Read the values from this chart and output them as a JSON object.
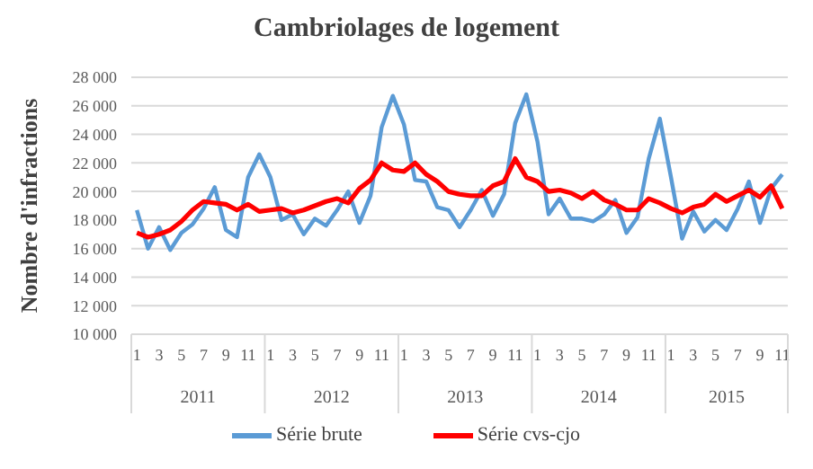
{
  "chart_data": {
    "type": "line",
    "title": "Cambriolages de logement",
    "ylabel": "Nombre d'infractions",
    "categories": [
      "1",
      null,
      "3",
      null,
      "5",
      null,
      "7",
      null,
      "9",
      null,
      "11",
      null,
      "1",
      null,
      "3",
      null,
      "5",
      null,
      "7",
      null,
      "9",
      null,
      "11",
      null,
      "1",
      null,
      "3",
      null,
      "5",
      null,
      "7",
      null,
      "9",
      null,
      "11",
      null,
      "1",
      null,
      "3",
      null,
      "5",
      null,
      "7",
      null,
      "9",
      null,
      "11",
      null,
      "1",
      null,
      "3",
      null,
      "5",
      null,
      "7",
      null,
      "9",
      null,
      "11"
    ],
    "series": [
      {
        "name": "Série brute",
        "color": "#5b9bd5",
        "values": [
          18700,
          16000,
          17500,
          15900,
          17100,
          17700,
          18800,
          20300,
          17300,
          16800,
          21000,
          22600,
          21000,
          18000,
          18400,
          17000,
          18100,
          17600,
          18700,
          20000,
          17800,
          19700,
          24500,
          26700,
          24700,
          20800,
          20700,
          18900,
          18700,
          17500,
          18700,
          20100,
          18300,
          19800,
          24800,
          26800,
          23500,
          18400,
          19500,
          18100,
          18100,
          17900,
          18400,
          19400,
          17100,
          18200,
          22300,
          25100,
          21000,
          16700,
          18600,
          17200,
          18000,
          17300,
          18800,
          20700,
          17800,
          20200,
          21200
        ]
      },
      {
        "name": "Série cvs-cjo",
        "color": "#ff0000",
        "values": [
          17100,
          16800,
          17000,
          17300,
          17900,
          18700,
          19300,
          19200,
          19100,
          18700,
          19100,
          18600,
          18700,
          18800,
          18500,
          18700,
          19000,
          19300,
          19500,
          19200,
          20200,
          20800,
          22000,
          21500,
          21400,
          22000,
          21200,
          20700,
          20000,
          19800,
          19700,
          19700,
          20400,
          20700,
          22300,
          21000,
          20700,
          20000,
          20100,
          19900,
          19500,
          20000,
          19400,
          19100,
          18700,
          18700,
          19500,
          19200,
          18800,
          18500,
          18900,
          19100,
          19800,
          19300,
          19700,
          20100,
          19600,
          20400,
          18800
        ]
      }
    ],
    "annotations": [
      "2011",
      "2012",
      "2013",
      "2014",
      "2015"
    ],
    "ylim": [
      10000,
      28000
    ],
    "yticks": [
      {
        "value": 10000,
        "label": "10 000"
      },
      {
        "value": 12000,
        "label": "12 000"
      },
      {
        "value": 14000,
        "label": "14 000"
      },
      {
        "value": 16000,
        "label": "16 000"
      },
      {
        "value": 18000,
        "label": "18 000"
      },
      {
        "value": 20000,
        "label": "20 000"
      },
      {
        "value": 22000,
        "label": "22 000"
      },
      {
        "value": 24000,
        "label": "24 000"
      },
      {
        "value": 26000,
        "label": "26 000"
      },
      {
        "value": 28000,
        "label": "28 000"
      }
    ],
    "grid": "y",
    "legend": "bottom",
    "marker": "none",
    "line_style": "solid"
  }
}
